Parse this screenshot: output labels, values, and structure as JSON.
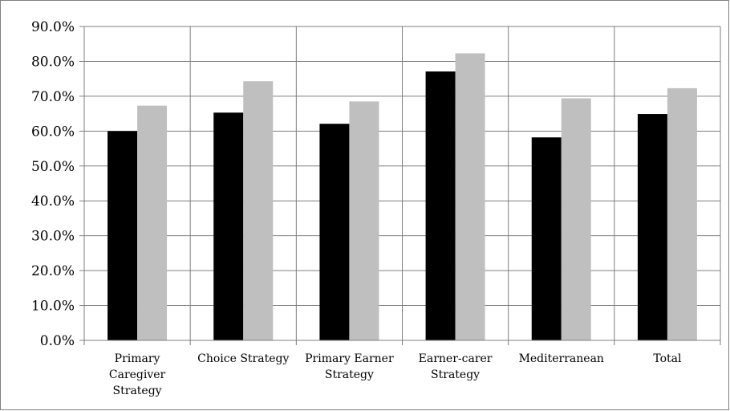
{
  "chart_data": {
    "type": "bar",
    "categories": [
      [
        "Primary",
        "Caregiver",
        "Strategy"
      ],
      [
        "Choice Strategy"
      ],
      [
        "Primary Earner",
        "Strategy"
      ],
      [
        "Earner-carer",
        "Strategy"
      ],
      [
        "Mediterranean"
      ],
      [
        "Total"
      ]
    ],
    "series": [
      {
        "values": [
          60.0,
          65.3,
          62.1,
          77.1,
          58.2,
          64.9
        ],
        "color": "#000000"
      },
      {
        "values": [
          67.3,
          74.3,
          68.5,
          82.3,
          69.4,
          72.3
        ],
        "color": "#bfbfbf"
      }
    ],
    "ylim": [
      0,
      90
    ],
    "yticks": [
      0,
      10,
      20,
      30,
      40,
      50,
      60,
      70,
      80,
      90
    ],
    "ytick_labels": [
      "0.0%",
      "10.0%",
      "20.0%",
      "30.0%",
      "40.0%",
      "50.0%",
      "60.0%",
      "70.0%",
      "80.0%",
      "90.0%"
    ],
    "grid": true,
    "legend": "none",
    "frame_color": "#7f7f7f"
  }
}
